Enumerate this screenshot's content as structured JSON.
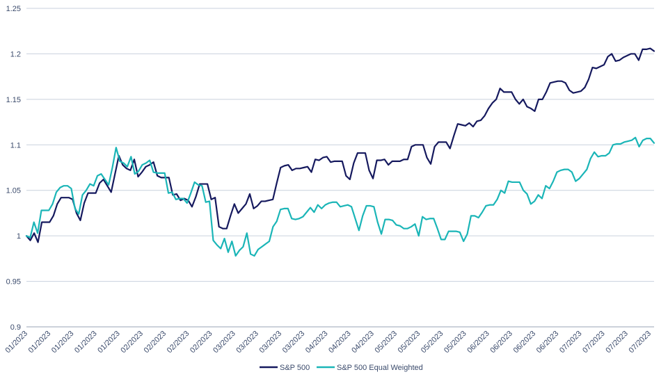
{
  "chart_data": {
    "type": "line",
    "title": "",
    "xlabel": "",
    "ylabel": "",
    "ylim": [
      0.9,
      1.25
    ],
    "y_ticks": [
      "0.9",
      "0.95",
      "1",
      "1.05",
      "1.1",
      "1.15",
      "1.2",
      "1.25"
    ],
    "grid": "horizontal",
    "legend_position": "bottom-center",
    "x_tick_labels": [
      "01/2023",
      "01/2023",
      "01/2023",
      "01/2023",
      "01/2023",
      "02/2023",
      "02/2023",
      "02/2023",
      "02/2023",
      "03/2023",
      "03/2023",
      "03/2023",
      "03/2023",
      "04/2023",
      "04/2023",
      "04/2023",
      "05/2023",
      "05/2023",
      "05/2023",
      "05/2023",
      "06/2023",
      "06/2023",
      "06/2023",
      "06/2023",
      "07/2023",
      "07/2023",
      "07/2023",
      "07/2023"
    ],
    "series": [
      {
        "name": "S&P 500",
        "color": "#15195e",
        "values": [
          1.0,
          0.995,
          1.003,
          0.993,
          1.015,
          1.015,
          1.015,
          1.022,
          1.035,
          1.042,
          1.042,
          1.042,
          1.04,
          1.025,
          1.017,
          1.036,
          1.047,
          1.047,
          1.047,
          1.058,
          1.062,
          1.055,
          1.048,
          1.068,
          1.088,
          1.078,
          1.074,
          1.072,
          1.084,
          1.065,
          1.07,
          1.076,
          1.078,
          1.081,
          1.066,
          1.064,
          1.064,
          1.064,
          1.045,
          1.046,
          1.039,
          1.041,
          1.039,
          1.032,
          1.043,
          1.057,
          1.057,
          1.057,
          1.04,
          1.042,
          1.01,
          1.008,
          1.008,
          1.022,
          1.035,
          1.025,
          1.03,
          1.035,
          1.046,
          1.03,
          1.033,
          1.038,
          1.038,
          1.039,
          1.04,
          1.058,
          1.075,
          1.077,
          1.078,
          1.072,
          1.074,
          1.074,
          1.075,
          1.076,
          1.07,
          1.084,
          1.083,
          1.086,
          1.087,
          1.081,
          1.082,
          1.082,
          1.082,
          1.066,
          1.062,
          1.08,
          1.091,
          1.091,
          1.091,
          1.072,
          1.063,
          1.083,
          1.083,
          1.084,
          1.078,
          1.082,
          1.082,
          1.082,
          1.084,
          1.084,
          1.098,
          1.1,
          1.1,
          1.1,
          1.086,
          1.079,
          1.098,
          1.103,
          1.103,
          1.103,
          1.096,
          1.11,
          1.123,
          1.122,
          1.121,
          1.124,
          1.12,
          1.126,
          1.127,
          1.132,
          1.14,
          1.146,
          1.15,
          1.162,
          1.158,
          1.158,
          1.158,
          1.15,
          1.145,
          1.15,
          1.142,
          1.14,
          1.137,
          1.15,
          1.15,
          1.158,
          1.168,
          1.169,
          1.17,
          1.17,
          1.168,
          1.16,
          1.157,
          1.158,
          1.159,
          1.163,
          1.172,
          1.185,
          1.184,
          1.186,
          1.188,
          1.197,
          1.2,
          1.192,
          1.193,
          1.196,
          1.198,
          1.2,
          1.2,
          1.193,
          1.205,
          1.205,
          1.206,
          1.203
        ]
      },
      {
        "name": "S&P 500 Equal Weighted",
        "color": "#1ab5b7",
        "values": [
          1.0,
          0.998,
          1.015,
          1.003,
          1.028,
          1.028,
          1.028,
          1.035,
          1.048,
          1.053,
          1.055,
          1.055,
          1.052,
          1.03,
          1.024,
          1.045,
          1.05,
          1.057,
          1.055,
          1.066,
          1.068,
          1.062,
          1.056,
          1.075,
          1.097,
          1.082,
          1.08,
          1.076,
          1.087,
          1.068,
          1.071,
          1.078,
          1.08,
          1.083,
          1.07,
          1.069,
          1.069,
          1.069,
          1.047,
          1.048,
          1.04,
          1.041,
          1.041,
          1.036,
          1.047,
          1.059,
          1.056,
          1.055,
          1.037,
          1.038,
          0.995,
          0.99,
          0.986,
          0.997,
          0.982,
          0.994,
          0.978,
          0.984,
          0.988,
          1.003,
          0.98,
          0.978,
          0.985,
          0.988,
          0.991,
          0.994,
          1.01,
          1.016,
          1.029,
          1.03,
          1.03,
          1.019,
          1.018,
          1.019,
          1.021,
          1.026,
          1.031,
          1.026,
          1.034,
          1.03,
          1.034,
          1.036,
          1.037,
          1.037,
          1.032,
          1.033,
          1.034,
          1.032,
          1.019,
          1.006,
          1.022,
          1.033,
          1.033,
          1.032,
          1.015,
          1.002,
          1.018,
          1.018,
          1.017,
          1.012,
          1.011,
          1.008,
          1.008,
          1.01,
          1.013,
          1.0,
          1.021,
          1.018,
          1.019,
          1.019,
          1.008,
          0.996,
          0.996,
          1.005,
          1.005,
          1.005,
          1.004,
          0.994,
          1.002,
          1.022,
          1.022,
          1.02,
          1.026,
          1.033,
          1.034,
          1.034,
          1.04,
          1.05,
          1.047,
          1.06,
          1.059,
          1.059,
          1.059,
          1.05,
          1.046,
          1.035,
          1.038,
          1.045,
          1.041,
          1.055,
          1.052,
          1.06,
          1.07,
          1.072,
          1.073,
          1.073,
          1.07,
          1.06,
          1.063,
          1.068,
          1.073,
          1.085,
          1.092,
          1.087,
          1.088,
          1.088,
          1.091,
          1.1,
          1.101,
          1.101,
          1.103,
          1.104,
          1.105,
          1.108,
          1.098,
          1.105,
          1.107,
          1.107,
          1.102
        ]
      }
    ]
  }
}
